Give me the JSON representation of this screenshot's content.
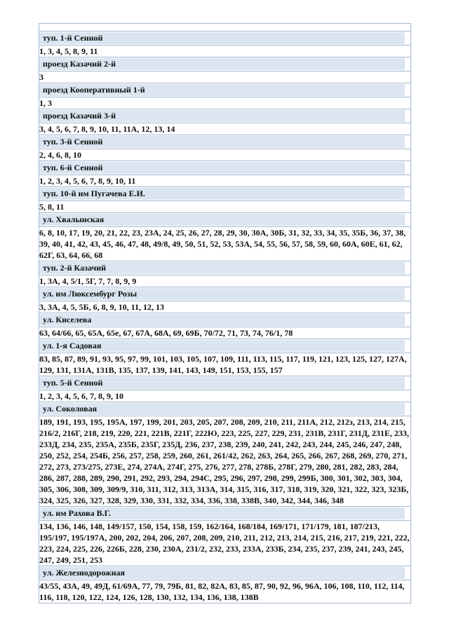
{
  "page": {
    "background_color": "#ffffff",
    "kind": "address-register-table-page",
    "language": "ru"
  },
  "table": {
    "header_fill_color": "#dbe5f1",
    "border_color": "#a3b8d0",
    "text_color": "#0d0d0d",
    "has_top_stub_row": true,
    "rows": [
      {
        "street": "туп. 1-й Сенной",
        "houses": "1, 3, 4, 5, 8, 9, 11"
      },
      {
        "street": "проезд Казачий 2-й",
        "houses": "3"
      },
      {
        "street": "проезд Кооперативный 1-й",
        "houses": "1, 3"
      },
      {
        "street": "проезд Казачий 3-й",
        "houses": "3, 4, 5, 6, 7, 8, 9, 10, 11, 11А, 12, 13, 14"
      },
      {
        "street": "туп. 3-й Сенной",
        "houses": "2, 4, 6, 8, 10"
      },
      {
        "street": "туп. 6-й Сенной",
        "houses": "1, 2, 3, 4, 5, 6, 7, 8, 9, 10, 11"
      },
      {
        "street": "туп. 10-й им Пугачева Е.И.",
        "houses": "5, 8, 11"
      },
      {
        "street": "ул. Хвалынская",
        "houses": "6, 8, 10, 17, 19, 20, 21, 22, 23, 23А, 24, 25, 26, 27, 28, 29, 30, 30А, 30Б, 31, 32, 33, 34, 35, 35Б, 36, 37, 38, 39, 40, 41, 42, 43, 45, 46, 47, 48, 49/8, 49, 50, 51, 52, 53, 53А, 54, 55, 56, 57, 58, 59, 60, 60А, 60Е, 61, 62, 62Г, 63, 64, 66, 68"
      },
      {
        "street": "туп. 2-й Казачий",
        "houses": "1, 3А, 4, 5/1, 5Г, 7, 7, 8, 9, 9"
      },
      {
        "street": "ул. им Люксембург Розы",
        "houses": "3, 3А, 4, 5, 5Б, 6, 8, 9, 10, 11, 12, 13"
      },
      {
        "street": "ул. Киселева",
        "houses": "63, 64/66, 65, 65А, 65е, 67, 67А, 68А, 69, 69Б, 70/72, 71, 73, 74, 76/1, 78"
      },
      {
        "street": "ул. 1-я Садовая",
        "houses": "83, 85, 87, 89, 91, 93, 95, 97, 99, 101, 103, 105, 107, 109, 111, 113, 115, 117, 119, 121, 123, 125, 127, 127А, 129, 131, 131А, 131В, 135, 137, 139, 141, 143, 149, 151, 153, 155, 157"
      },
      {
        "street": "туп. 5-й Сенной",
        "houses": "1, 2, 3, 4, 5, 6, 7, 8, 9, 10"
      },
      {
        "street": "ул. Соколовая",
        "houses": "189, 191, 193, 195, 195А, 197, 199, 201, 203, 205, 207, 208, 209, 210, 211, 211А, 212, 212з, 213, 214, 215, 216/2, 216Г, 218, 219, 220, 221, 221В, 221Г, 222Ю, 223, 225, 227, 229, 231, 231В, 231Г, 231Д, 231Е, 233, 233Д, 234, 235, 235А, 235Б, 235Г, 235Д, 236, 237, 238, 239, 240, 241, 242, 243, 244, 245, 246, 247, 248, 250, 252, 254, 254Б, 256, 257, 258, 259, 260, 261, 261/42, 262, 263, 264, 265, 266, 267, 268, 269, 270, 271, 272, 273, 273/275, 273Е, 274, 274А, 274Г, 275, 276, 277, 278, 278Б, 278Г, 279, 280, 281, 282, 283, 284, 286, 287, 288, 289, 290, 291, 292, 293, 294, 294С, 295, 296, 297, 298, 299, 299Б, 300, 301, 302, 303, 304, 305, 306, 308, 309, 309/9, 310, 311, 312, 313, 313А, 314, 315, 316, 317, 318, 319, 320, 321, 322, 323, 323Б, 324, 325, 326, 327, 328, 329, 330, 331, 332, 334, 336, 338, 338В, 340, 342, 344, 346, 348"
      },
      {
        "street": "ул. им Рахова В.Г.",
        "houses": "134, 136, 146, 148, 149/157, 150, 154, 158, 159, 162/164, 168/184, 169/171, 171/179, 181, 187/213, 195/197, 195/197А, 200, 202, 204, 206, 207, 208, 209, 210, 211, 212, 213, 214, 215, 216, 217, 219, 221, 222, 223, 224, 225, 226, 226Б, 228, 230, 230А, 231/2, 232, 233, 233А, 233Б, 234, 235, 237, 239, 241, 243, 245, 247, 249, 251, 253"
      },
      {
        "street": "ул. Железнодорожная",
        "houses": "43/55, 43А, 49, 49Д, 61/69А, 77, 79, 79Б, 81, 82, 82А, 83, 85, 87, 90, 92, 96, 96А, 106, 108, 110, 112, 114, 116, 118, 120, 122, 124, 126, 128, 130, 132, 134, 136, 138, 138В"
      }
    ]
  }
}
